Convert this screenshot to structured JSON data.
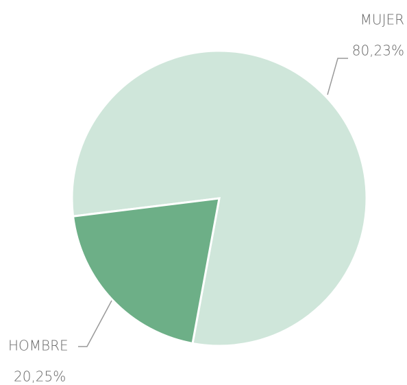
{
  "chart_data": {
    "type": "pie",
    "categories": [
      "MUJER",
      "HOMBRE"
    ],
    "values": [
      80.23,
      20.25
    ],
    "value_labels": [
      "80,23%",
      "20,25%"
    ],
    "colors": [
      "#cfe6da",
      "#6daf87"
    ]
  }
}
